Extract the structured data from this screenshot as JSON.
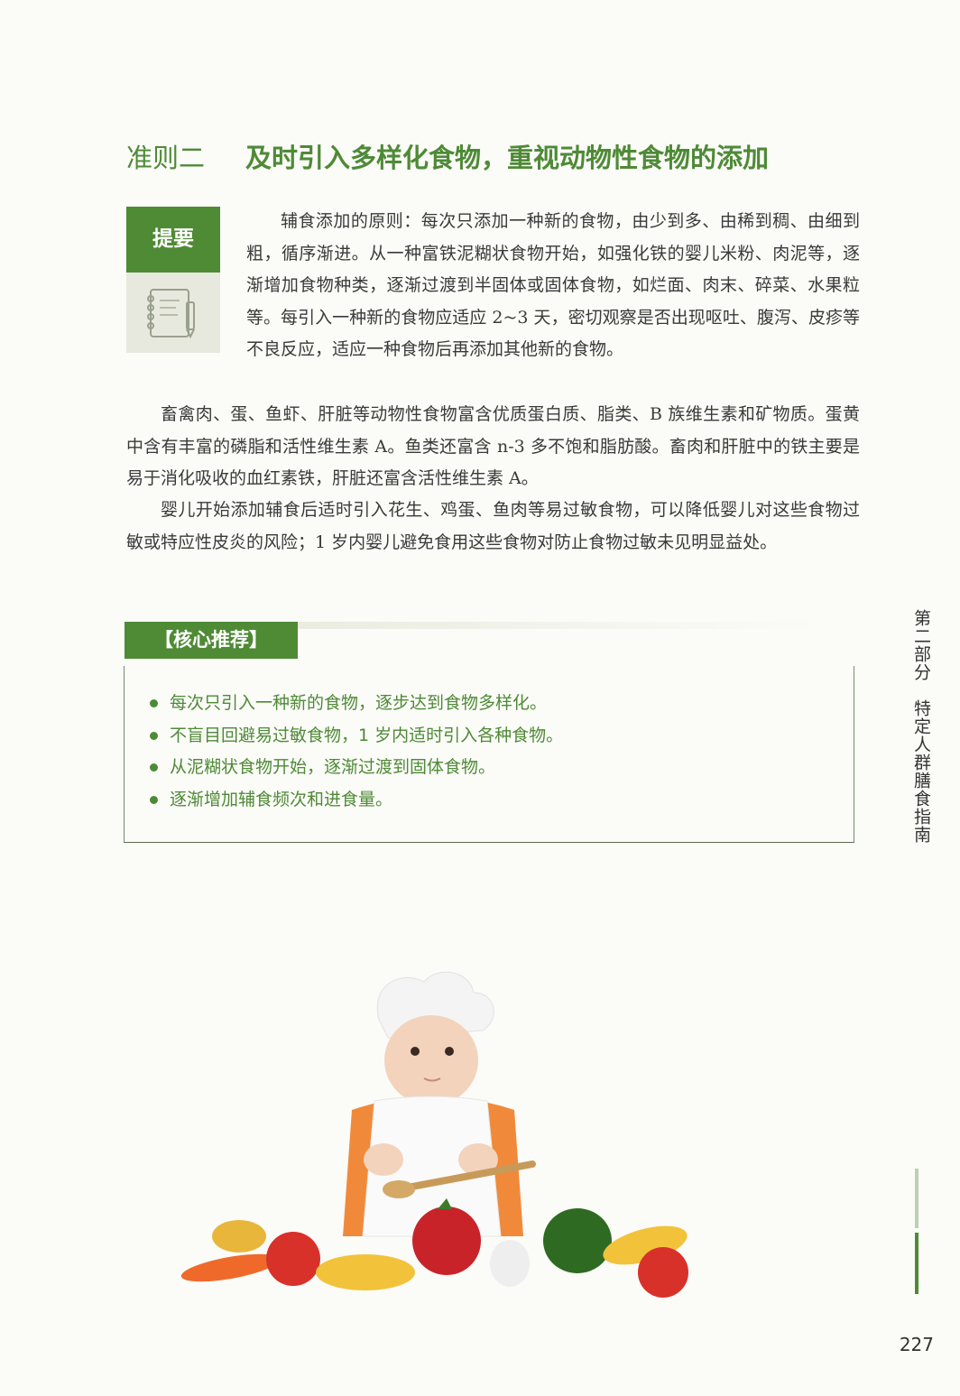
{
  "heading": {
    "rule_label": "准则二",
    "title": "及时引入多样化食物，重视动物性食物的添加"
  },
  "summary": {
    "label": "提要",
    "icon": "notebook-pen-icon"
  },
  "paragraphs": [
    "辅食添加的原则：每次只添加一种新的食物，由少到多、由稀到稠、由细到粗，循序渐进。从一种富铁泥糊状食物开始，如强化铁的婴儿米粉、肉泥等，逐渐增加食物种类，逐渐过渡到半固体或固体食物，如烂面、肉末、碎菜、水果粒等。每引入一种新的食物应适应 2~3 天，密切观察是否出现呕吐、腹泻、皮疹等不良反应，适应一种食物后再添加其他新的食物。",
    "畜禽肉、蛋、鱼虾、肝脏等动物性食物富含优质蛋白质、脂类、B 族维生素和矿物质。蛋黄中含有丰富的磷脂和活性维生素 A。鱼类还富含 n-3 多不饱和脂肪酸。畜肉和肝脏中的铁主要是易于消化吸收的血红素铁，肝脏还富含活性维生素 A。",
    "婴儿开始添加辅食后适时引入花生、鸡蛋、鱼肉等易过敏食物，可以降低婴儿对这些食物过敏或特应性皮炎的风险；1 岁内婴儿避免食用这些食物对防止食物过敏未见明显益处。"
  ],
  "core": {
    "title": "【核心推荐】",
    "items": [
      "每次只引入一种新的食物，逐步达到食物多样化。",
      "不盲目回避易过敏食物，1 岁内适时引入各种食物。",
      "从泥糊状食物开始，逐渐过渡到固体食物。",
      "逐渐增加辅食频次和进食量。"
    ]
  },
  "side_tab": "第二部分　特定人群膳食指南",
  "page_number": "227",
  "colors": {
    "accent_green": "#4f8a35",
    "light_green": "#bfcfb3",
    "icon_bg": "#e8e9de"
  }
}
